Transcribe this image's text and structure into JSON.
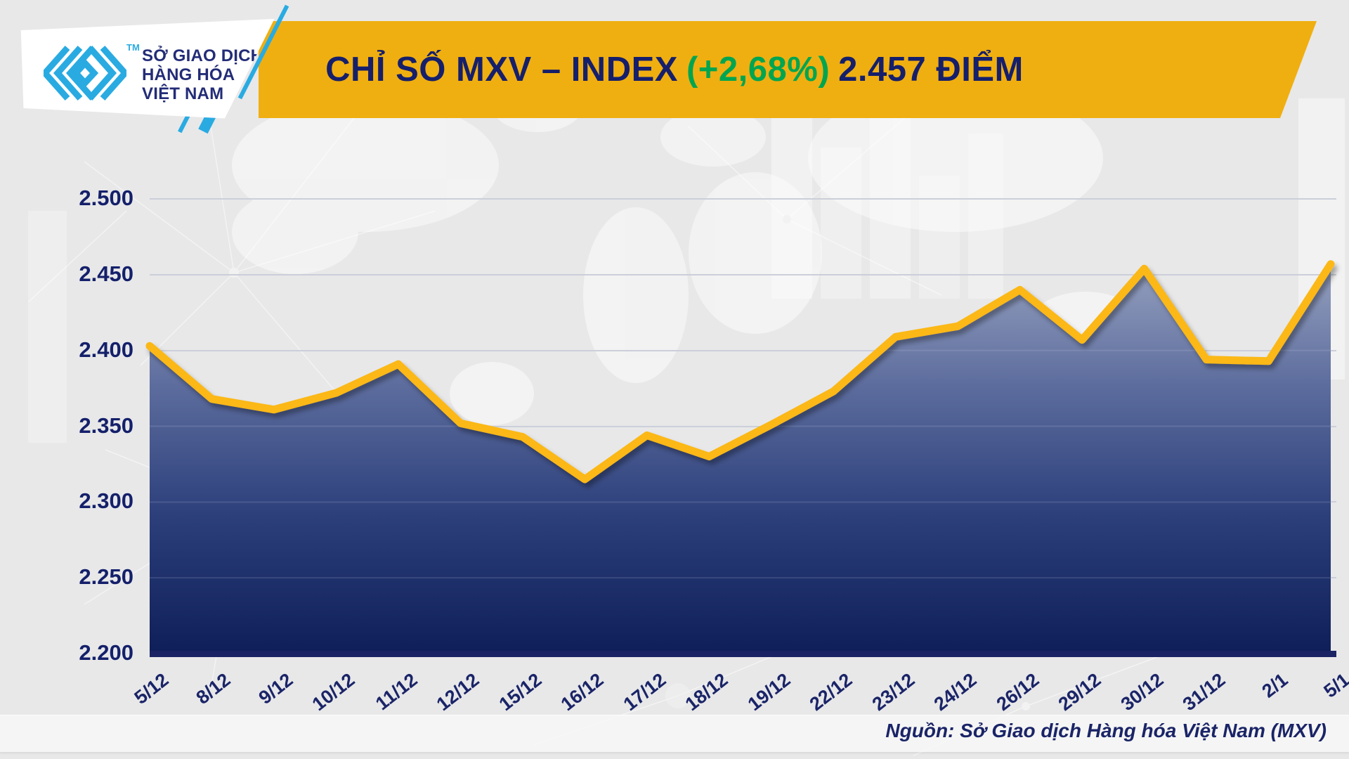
{
  "header": {
    "logo": {
      "org_line1": "SỞ GIAO DỊCH",
      "org_line2": "HÀNG HÓA",
      "org_line3": "VIỆT NAM",
      "trademark": "TM"
    },
    "title": {
      "part1": "CHỈ SỐ MXV – INDEX",
      "change": "(+2,68%)",
      "part2": "2.457 ĐIỂM"
    }
  },
  "footer": {
    "source": "Nguồn: Sở Giao dịch Hàng hóa Việt Nam (MXV)"
  },
  "colors": {
    "banner_yellow": "#F0AF10",
    "line_yellow": "#FBB815",
    "navy_text": "#151F6B",
    "green_change": "#00A551",
    "logo_cyan": "#29ABE2",
    "area_top": "#97A2C0",
    "area_mid": "#2C3F7B",
    "area_bottom": "#0E1E58",
    "background": "#E8E8E9"
  },
  "chart_data": {
    "type": "area",
    "title": "CHỈ SỐ MXV – INDEX (+2,68%) 2.457 ĐIỂM",
    "xlabel": "",
    "ylabel": "",
    "ylim": [
      2200,
      2500
    ],
    "ytick_step": 50,
    "ytick_labels": [
      "2.500",
      "2.450",
      "2.400",
      "2.350",
      "2.300",
      "2.250",
      "2.200"
    ],
    "grid": "horizontal",
    "legend": "none",
    "categories": [
      "5/12",
      "8/12",
      "9/12",
      "10/12",
      "11/12",
      "12/12",
      "15/12",
      "16/12",
      "17/12",
      "18/12",
      "19/12",
      "22/12",
      "23/12",
      "24/12",
      "26/12",
      "29/12",
      "30/12",
      "31/12",
      "2/1",
      "5/1"
    ],
    "values": [
      2403,
      2368,
      2361,
      2372,
      2391,
      2352,
      2343,
      2315,
      2344,
      2330,
      2351,
      2373,
      2409,
      2416,
      2440,
      2407,
      2454,
      2394,
      2393,
      2457
    ],
    "last_point_label": "2.457",
    "change_percent": "+2,68%"
  }
}
